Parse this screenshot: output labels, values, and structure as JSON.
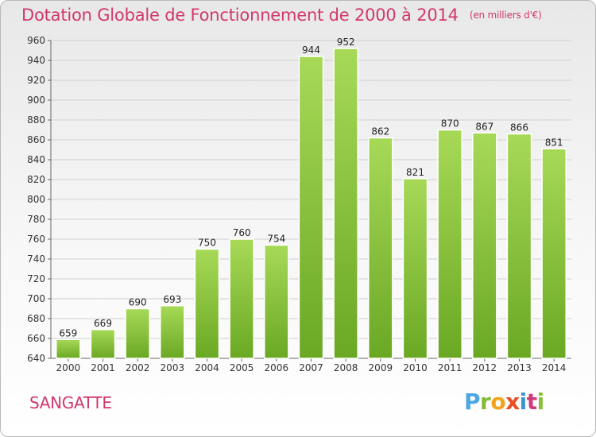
{
  "header": {
    "title": "Dotation Globale de Fonctionnement de 2000 à 2014",
    "unit": "(en milliers d'€)"
  },
  "footer": {
    "commune": "SANGATTE",
    "logo": "Proxiti"
  },
  "colors": {
    "title": "#d2386b",
    "bar_light": "#a7d957",
    "bar_dark": "#6aa823",
    "grid": "#cfcfcf"
  },
  "chart_data": {
    "type": "bar",
    "title": "Dotation Globale de Fonctionnement de 2000 à 2014",
    "subtitle": "(en milliers d'€)",
    "xlabel": "",
    "ylabel": "",
    "categories": [
      "2000",
      "2001",
      "2002",
      "2003",
      "2004",
      "2005",
      "2006",
      "2007",
      "2008",
      "2009",
      "2010",
      "2011",
      "2012",
      "2013",
      "2014"
    ],
    "values": [
      659,
      669,
      690,
      693,
      750,
      760,
      754,
      944,
      952,
      862,
      821,
      870,
      867,
      866,
      851
    ],
    "ylim": [
      640,
      960
    ],
    "ytick_step": 20,
    "grid": true,
    "legend": "none"
  }
}
